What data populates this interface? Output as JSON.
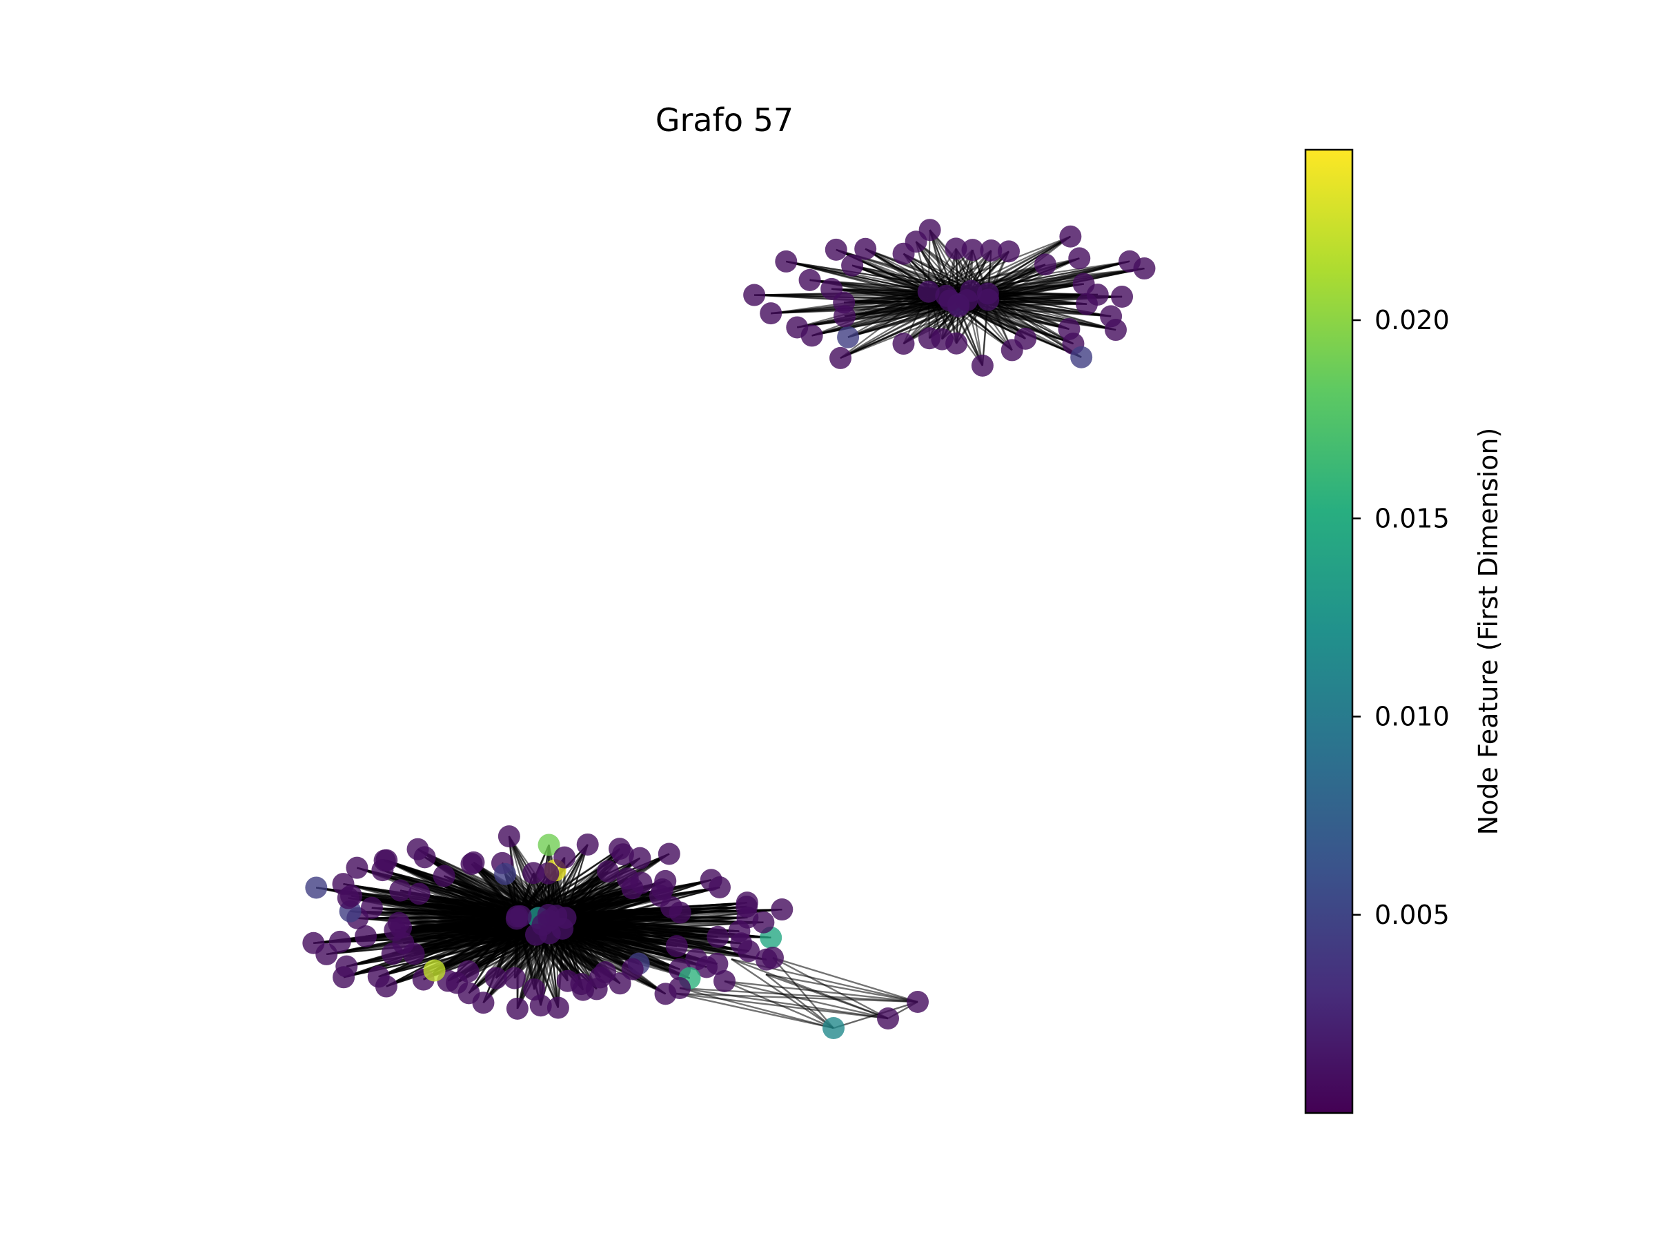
{
  "title": "Grafo 57",
  "colorbar": {
    "label": "Node Feature (First Dimension)",
    "colormap": "viridis",
    "range": [
      0.0,
      0.0243
    ],
    "ticks": [
      {
        "value": 0.005,
        "label": "0.005"
      },
      {
        "value": 0.01,
        "label": "0.010"
      },
      {
        "value": 0.015,
        "label": "0.015"
      },
      {
        "value": 0.02,
        "label": "0.020"
      }
    ]
  },
  "graph": {
    "node_alpha": 0.8,
    "edge_color": "#000000",
    "components": [
      {
        "name": "upper-cluster",
        "hub_feature": 0.0045,
        "hub_count": 9,
        "ring_nodes": 42,
        "features_high": [
          0.0045,
          0.0045
        ]
      },
      {
        "name": "lower-cluster",
        "hub_feature": 0.0125,
        "hub_count": 12,
        "ring_nodes": 96,
        "features_high": [
          0.022,
          0.019,
          0.0155,
          0.0145,
          0.0045,
          0.0045,
          0.0045,
          0.0045,
          0.0045,
          0.0045,
          0.0235
        ]
      },
      {
        "name": "bridge-tail",
        "nodes": [
          {
            "feature": 0.0115
          },
          {
            "feature": 0.0008
          },
          {
            "feature": 0.0008
          }
        ]
      }
    ]
  }
}
